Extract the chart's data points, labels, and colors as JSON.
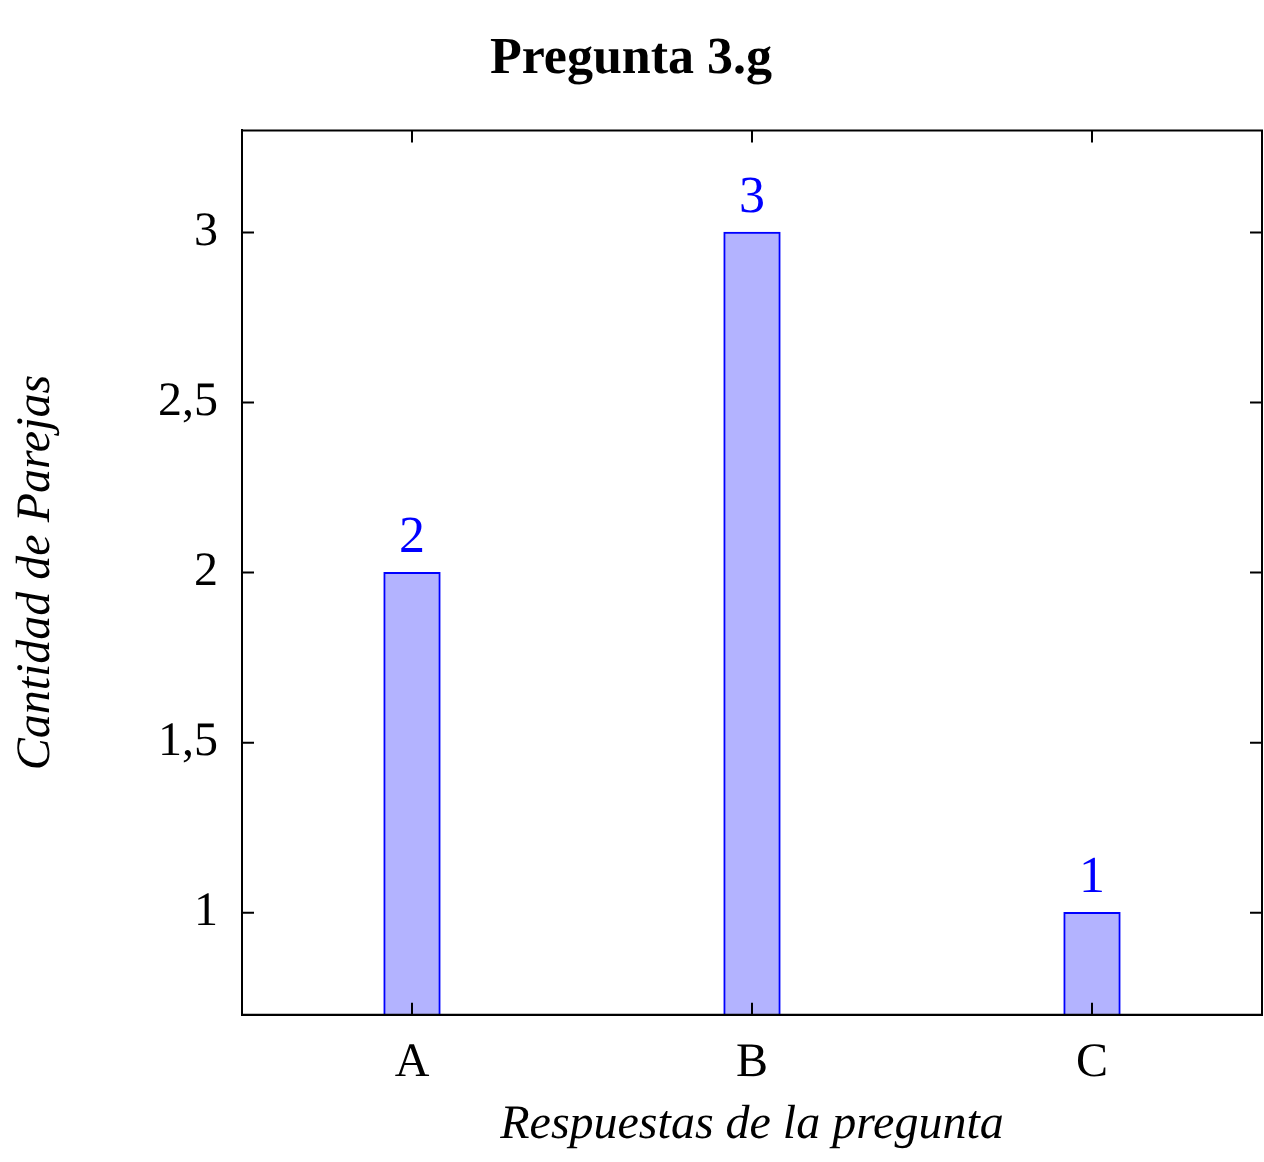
{
  "chart_data": {
    "type": "bar",
    "title": "Pregunta 3.g",
    "xlabel": "Respuestas de la pregunta",
    "ylabel": "Cantidad de Parejas",
    "categories": [
      "A",
      "B",
      "C"
    ],
    "series": [
      {
        "color": "#b3b3ff",
        "values": [
          2,
          3,
          1
        ]
      }
    ],
    "ylim": [
      0.7,
      3.3
    ],
    "yticks": [
      1,
      {
        "value": 1.5,
        "label": "1,5"
      },
      2,
      {
        "value": 2.5,
        "label": "2,5"
      },
      3
    ],
    "data_labels": true,
    "grid": false,
    "legend": false
  }
}
